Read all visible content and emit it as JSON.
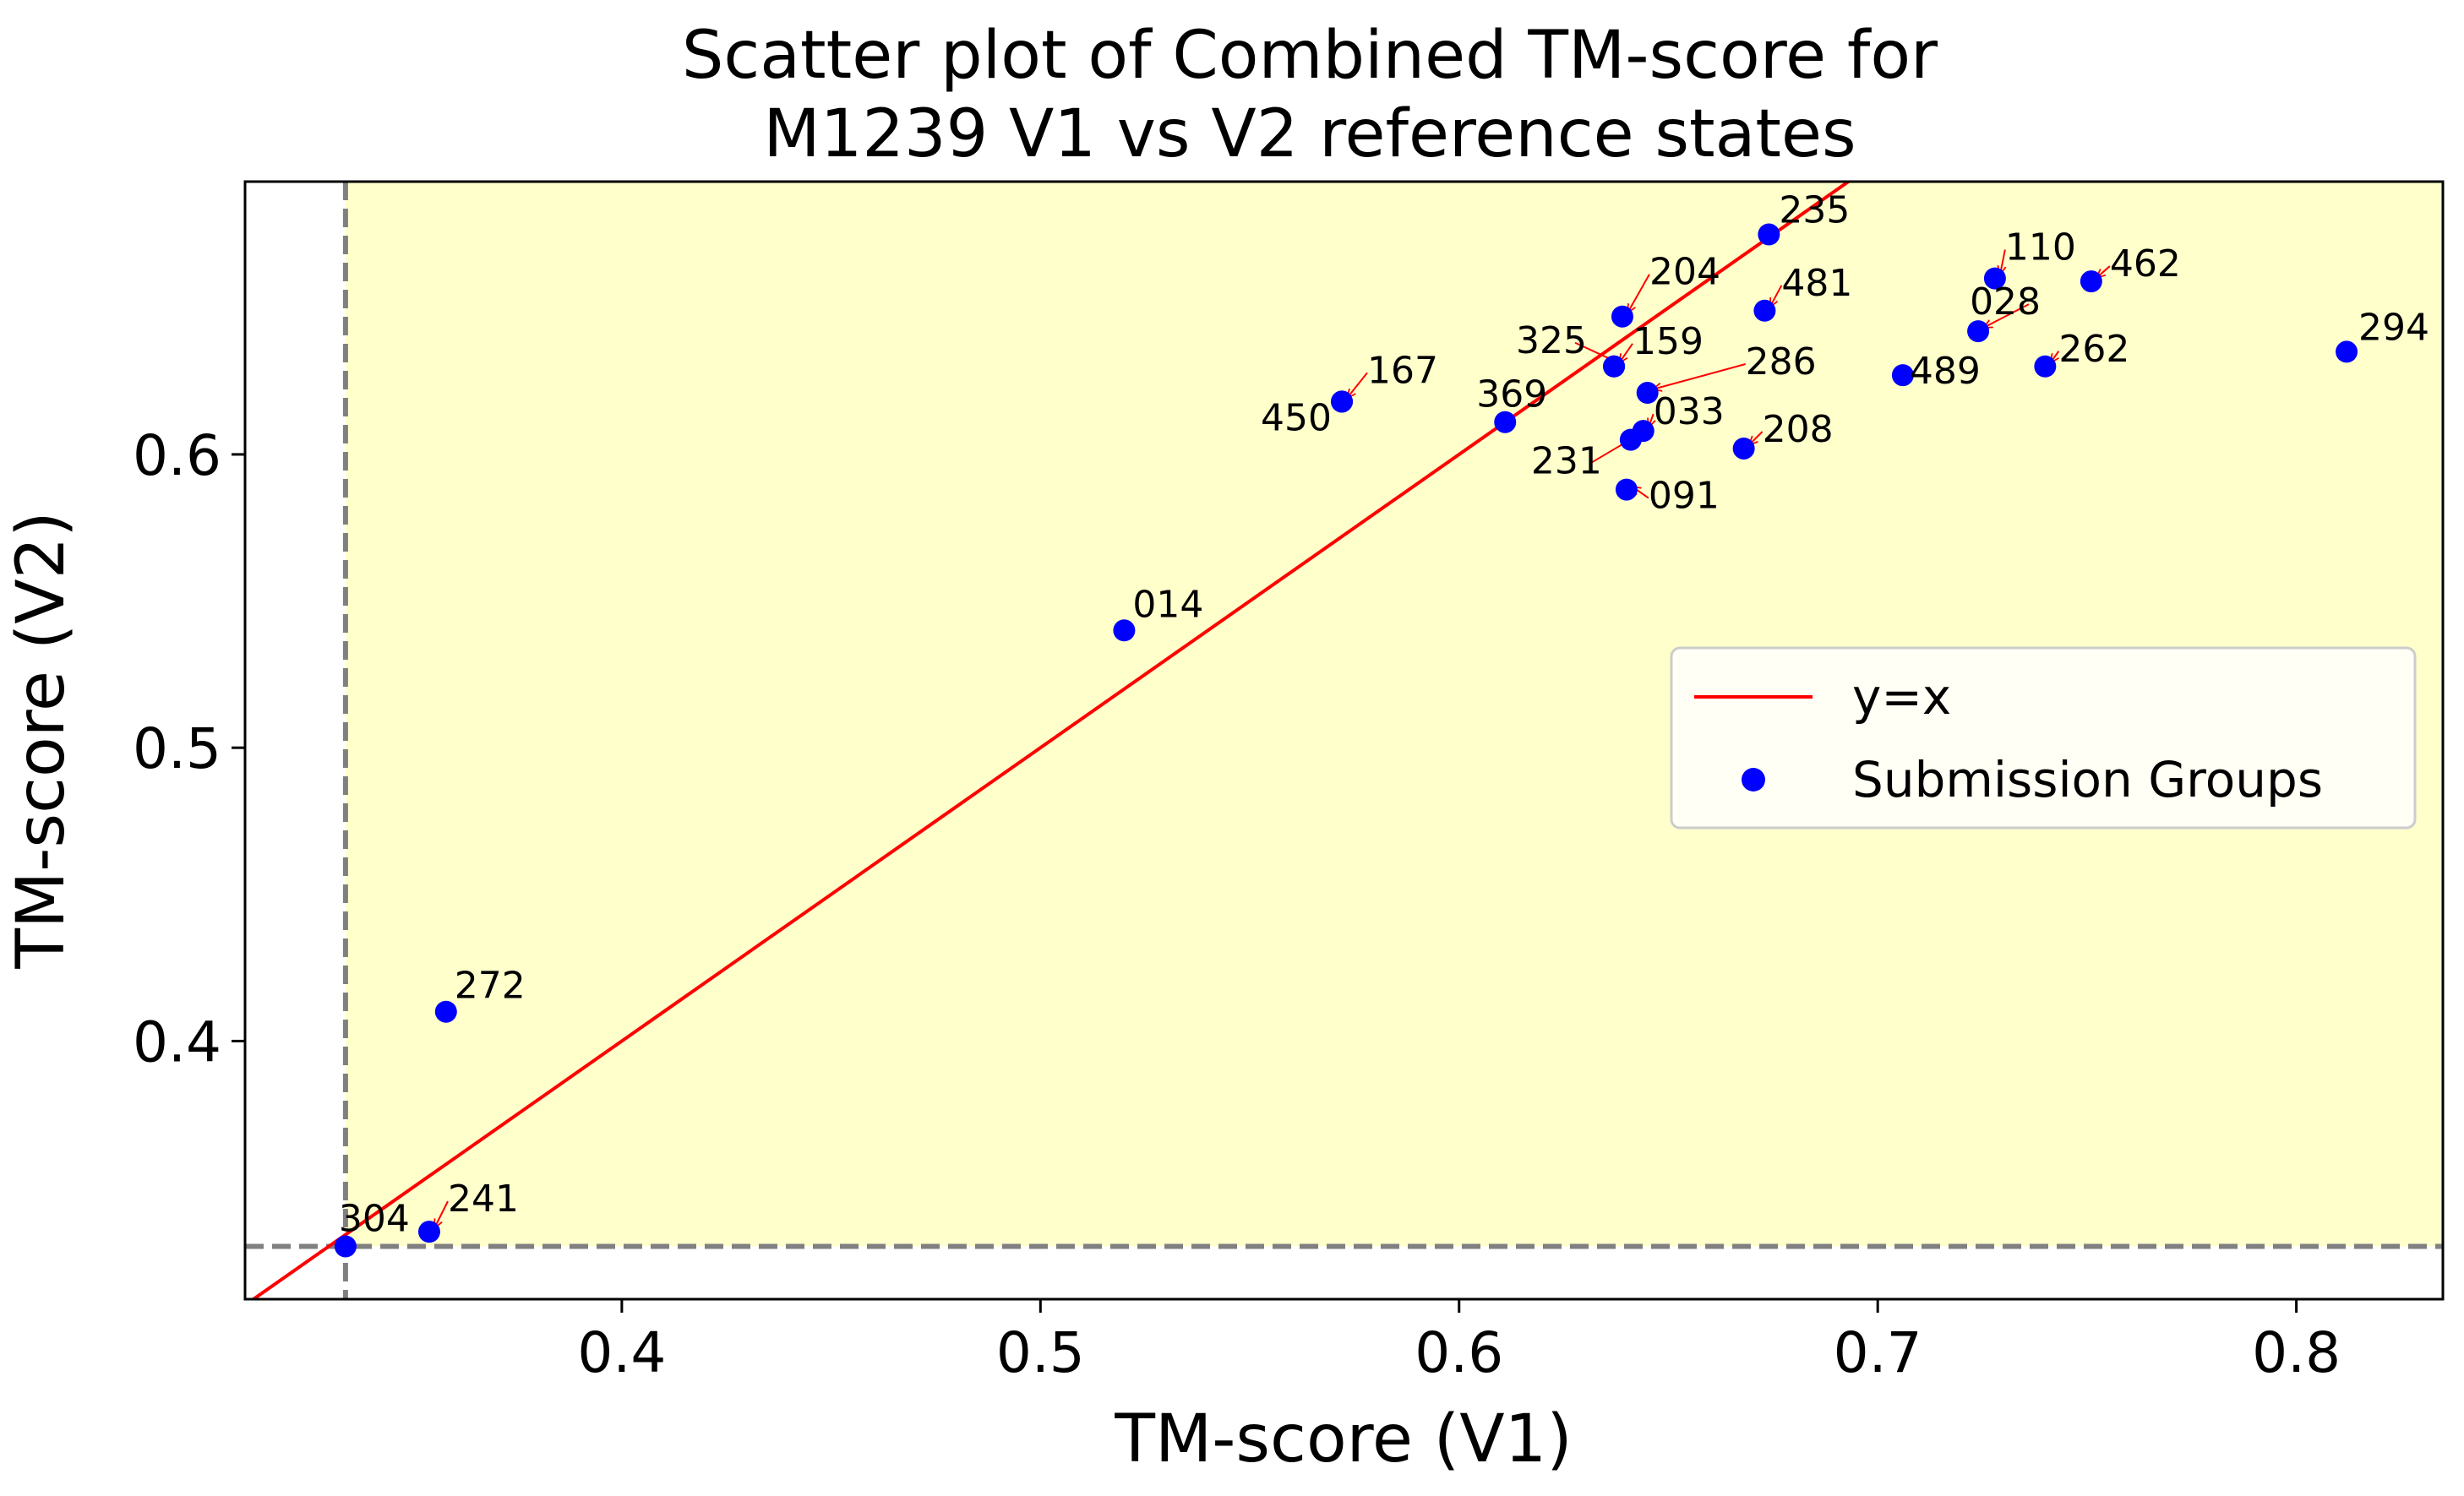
{
  "chart_data": {
    "type": "scatter",
    "title_lines": [
      "Scatter plot of Combined TM-score for",
      "M1239 V1 vs V2 reference states"
    ],
    "xlabel": "TM-score (V1)",
    "ylabel": "TM-score (V2)",
    "xlim": [
      0.31,
      0.835
    ],
    "ylim": [
      0.312,
      0.693
    ],
    "xticks": [
      0.4,
      0.5,
      0.6,
      0.7,
      0.8
    ],
    "yticks": [
      0.4,
      0.5,
      0.6
    ],
    "xtick_labels": [
      "0.4",
      "0.5",
      "0.6",
      "0.7",
      "0.8"
    ],
    "ytick_labels": [
      "0.4",
      "0.5",
      "0.6"
    ],
    "reference_lines": {
      "x": 0.334,
      "y": 0.33,
      "style": "dashed",
      "color": "#808080"
    },
    "highlight_region": {
      "x_from": 0.334,
      "y_from": 0.33,
      "color": "#ffffcc"
    },
    "identity_line": {
      "label": "y=x",
      "color": "#ff0000"
    },
    "series": [
      {
        "name": "Submission Groups",
        "color": "#0000ff",
        "points": [
          {
            "label": "235",
            "x": 0.674,
            "y": 0.675
          },
          {
            "label": "204",
            "x": 0.639,
            "y": 0.647
          },
          {
            "label": "481",
            "x": 0.673,
            "y": 0.649
          },
          {
            "label": "110",
            "x": 0.728,
            "y": 0.66
          },
          {
            "label": "462",
            "x": 0.751,
            "y": 0.659
          },
          {
            "label": "028",
            "x": 0.724,
            "y": 0.642
          },
          {
            "label": "294",
            "x": 0.812,
            "y": 0.635
          },
          {
            "label": "325",
            "x": 0.637,
            "y": 0.63
          },
          {
            "label": "159",
            "x": 0.637,
            "y": 0.63
          },
          {
            "label": "286",
            "x": 0.645,
            "y": 0.621
          },
          {
            "label": "489",
            "x": 0.706,
            "y": 0.627
          },
          {
            "label": "262",
            "x": 0.74,
            "y": 0.63
          },
          {
            "label": "167",
            "x": 0.572,
            "y": 0.618
          },
          {
            "label": "450",
            "x": 0.572,
            "y": 0.618
          },
          {
            "label": "369",
            "x": 0.611,
            "y": 0.611
          },
          {
            "label": "033",
            "x": 0.644,
            "y": 0.608
          },
          {
            "label": "231",
            "x": 0.641,
            "y": 0.605
          },
          {
            "label": "208",
            "x": 0.668,
            "y": 0.602
          },
          {
            "label": "091",
            "x": 0.64,
            "y": 0.588
          },
          {
            "label": "014",
            "x": 0.52,
            "y": 0.54
          },
          {
            "label": "272",
            "x": 0.358,
            "y": 0.41
          },
          {
            "label": "241",
            "x": 0.354,
            "y": 0.335
          },
          {
            "label": "304",
            "x": 0.334,
            "y": 0.33
          }
        ]
      }
    ],
    "legend": {
      "position": "center-right",
      "entries": [
        "y=x",
        "Submission Groups"
      ]
    },
    "grid": false
  }
}
